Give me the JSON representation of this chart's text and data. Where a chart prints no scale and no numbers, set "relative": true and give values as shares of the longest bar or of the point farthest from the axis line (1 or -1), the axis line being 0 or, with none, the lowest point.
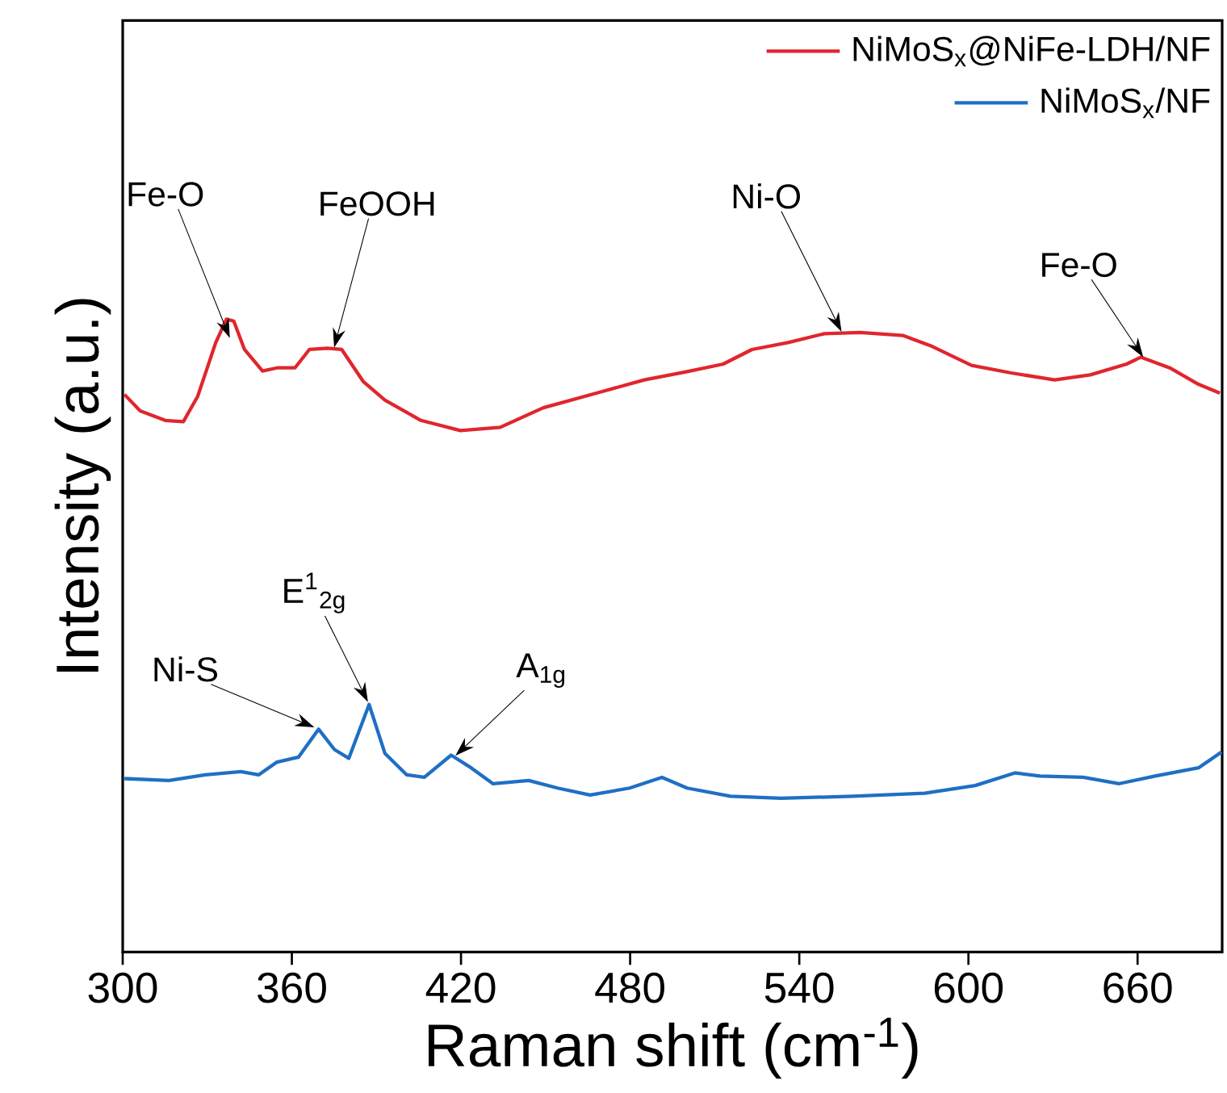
{
  "chart_data": {
    "type": "line",
    "relative": true,
    "xlabel": "Raman shift (cm$^{-1}$)",
    "ylabel": "Intensity (a.u.)",
    "xlim": [
      300,
      690
    ],
    "xticks": [
      300,
      360,
      420,
      480,
      540,
      600,
      660
    ],
    "legend": "top right",
    "series": [
      {
        "name": "NiMoS$_{x}$@NiFe-LDH/NF",
        "color": "#e0262e",
        "x": [
          300.6,
          306.2,
          315.1,
          321.5,
          326.6,
          333,
          336.8,
          339.4,
          343.2,
          349.6,
          354.7,
          361.1,
          366.2,
          372.6,
          377.7,
          385.4,
          393,
          405.8,
          419.8,
          433.9,
          449.2,
          469.6,
          485,
          500.2,
          513,
          523.2,
          536,
          548.9,
          561.6,
          576.9,
          587.1,
          601.1,
          615.2,
          630.6,
          643.2,
          656.1,
          661.2,
          671.4,
          681.6,
          689.2
        ],
        "values": [
          0.881,
          0.855,
          0.84,
          0.838,
          0.878,
          0.963,
          1.0,
          0.997,
          0.952,
          0.918,
          0.923,
          0.923,
          0.952,
          0.954,
          0.952,
          0.901,
          0.872,
          0.84,
          0.824,
          0.829,
          0.86,
          0.885,
          0.904,
          0.917,
          0.929,
          0.952,
          0.963,
          0.977,
          0.979,
          0.974,
          0.957,
          0.927,
          0.915,
          0.904,
          0.912,
          0.929,
          0.94,
          0.923,
          0.897,
          0.883
        ]
      },
      {
        "name": "NiMoS$_{x}$/NF",
        "color": "#1f6fc4",
        "x": [
          300.6,
          316.4,
          329.2,
          341.9,
          348.3,
          354.7,
          362.4,
          369.5,
          375.1,
          380.2,
          387.4,
          393,
          400.7,
          407,
          416.5,
          423.6,
          431.3,
          444,
          454.3,
          465.8,
          479.8,
          491.3,
          500.2,
          515.6,
          533.5,
          559,
          584.5,
          602.4,
          616.5,
          625.4,
          640.7,
          653.5,
          666.2,
          681.6,
          689.8
        ],
        "values": [
          0.274,
          0.271,
          0.28,
          0.285,
          0.28,
          0.3,
          0.308,
          0.352,
          0.32,
          0.306,
          0.391,
          0.314,
          0.28,
          0.276,
          0.311,
          0.291,
          0.266,
          0.271,
          0.259,
          0.248,
          0.259,
          0.276,
          0.259,
          0.246,
          0.243,
          0.246,
          0.251,
          0.263,
          0.283,
          0.278,
          0.276,
          0.266,
          0.278,
          0.291,
          0.316
        ]
      }
    ],
    "annotations": [
      {
        "text": "Fe-O",
        "x": 338,
        "y": 0.97
      },
      {
        "text": "FeOOH",
        "x": 375,
        "y": 0.955
      },
      {
        "text": "Ni-O",
        "x": 555,
        "y": 0.98
      },
      {
        "text": "Fe-O",
        "x": 662,
        "y": 0.94
      },
      {
        "text": "Ni-S",
        "x": 368,
        "y": 0.355
      },
      {
        "text": "E$^{1}$$_{2g}$",
        "x": 387,
        "y": 0.395
      },
      {
        "text": "A$_{1g}$",
        "x": 418,
        "y": 0.31
      }
    ]
  }
}
